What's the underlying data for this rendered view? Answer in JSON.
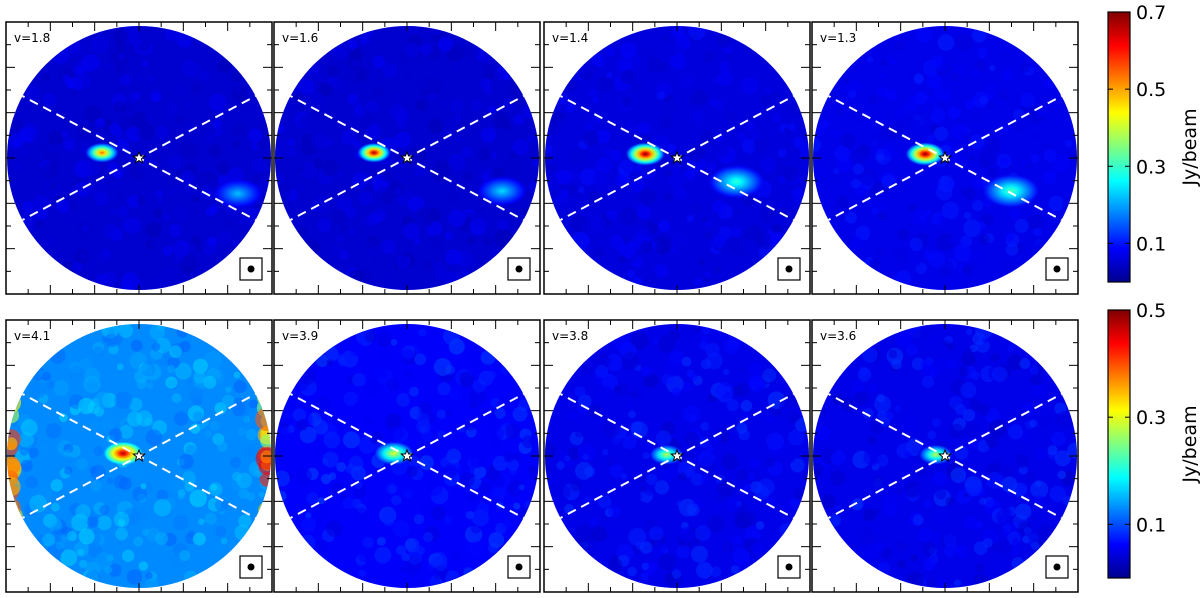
{
  "chart_data": {
    "type": "heatmap",
    "description_rows": 2,
    "rows": [
      {
        "colorbar": {
          "label": "Jy/beam",
          "range": [
            0.0,
            0.7
          ],
          "ticks": [
            "0.7",
            "0.5",
            "0.3",
            "0.1"
          ],
          "tick_values": [
            0.7,
            0.5,
            0.3,
            0.1
          ]
        },
        "panels": [
          {
            "label": "v=1.8",
            "background_level": 0.05,
            "blobs": [
              {
                "dx": -0.28,
                "dy": -0.04,
                "peak": 0.55,
                "size": 0.06
              },
              {
                "dx": 0.75,
                "dy": 0.27,
                "peak": 0.22,
                "size": 0.09
              }
            ]
          },
          {
            "label": "v=1.6",
            "background_level": 0.05,
            "blobs": [
              {
                "dx": -0.25,
                "dy": -0.04,
                "peak": 0.68,
                "size": 0.06
              },
              {
                "dx": 0.72,
                "dy": 0.25,
                "peak": 0.24,
                "size": 0.09
              }
            ]
          },
          {
            "label": "v=1.4",
            "background_level": 0.06,
            "blobs": [
              {
                "dx": -0.24,
                "dy": -0.03,
                "peak": 0.7,
                "size": 0.07
              },
              {
                "dx": 0.45,
                "dy": 0.18,
                "peak": 0.3,
                "size": 0.1
              }
            ]
          },
          {
            "label": "v=1.3",
            "background_level": 0.07,
            "blobs": [
              {
                "dx": -0.15,
                "dy": -0.03,
                "peak": 0.7,
                "size": 0.07
              },
              {
                "dx": 0.5,
                "dy": 0.25,
                "peak": 0.32,
                "size": 0.1
              }
            ]
          }
        ]
      },
      {
        "colorbar": {
          "label": "Jy/beam",
          "range": [
            0.0,
            0.5
          ],
          "ticks": [
            "0.5",
            "0.3",
            "0.1"
          ],
          "tick_values": [
            0.5,
            0.3,
            0.1
          ]
        },
        "panels": [
          {
            "label": "v=4.1",
            "background_level": 0.13,
            "blobs": [
              {
                "dx": -0.12,
                "dy": -0.02,
                "peak": 0.48,
                "size": 0.07
              }
            ]
          },
          {
            "label": "v=3.9",
            "background_level": 0.06,
            "blobs": [
              {
                "dx": -0.1,
                "dy": -0.02,
                "peak": 0.3,
                "size": 0.07
              }
            ]
          },
          {
            "label": "v=3.8",
            "background_level": 0.05,
            "blobs": [
              {
                "dx": -0.08,
                "dy": -0.01,
                "peak": 0.28,
                "size": 0.06
              }
            ]
          },
          {
            "label": "v=3.6",
            "background_level": 0.05,
            "blobs": [
              {
                "dx": -0.07,
                "dy": -0.01,
                "peak": 0.28,
                "size": 0.06
              }
            ]
          }
        ]
      }
    ],
    "overlays": {
      "star_marker": "star-icon",
      "beam_marker": "beam-icon",
      "dashed_lines": "white dashed X crossing at star"
    },
    "colormap": [
      "#00008f",
      "#0000ff",
      "#0080ff",
      "#00ffff",
      "#80ff80",
      "#ffff00",
      "#ff8000",
      "#ff0000",
      "#800000"
    ]
  }
}
